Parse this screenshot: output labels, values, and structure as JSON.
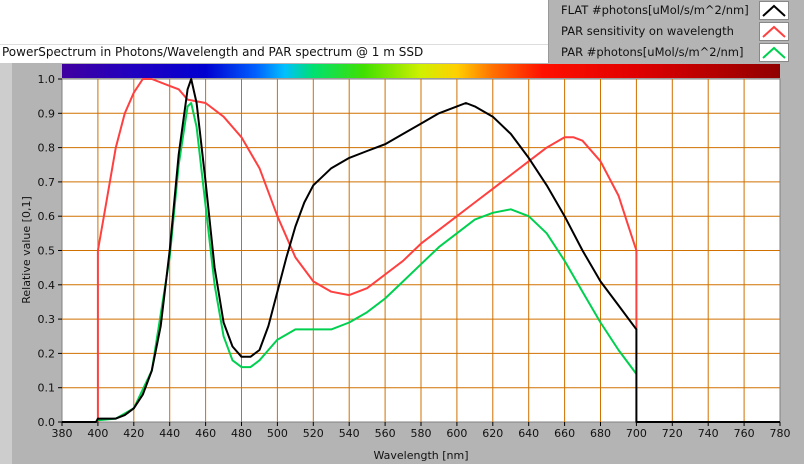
{
  "title": "PowerSpectrum in Photons/Wavelength and PAR spectrum @ 1 m SSD",
  "legend": [
    {
      "label": "FLAT #photons[uMol/s/m^2/nm]",
      "color": "#000000"
    },
    {
      "label": "PAR sensitivity on wavelength",
      "color": "#ff4040"
    },
    {
      "label": "PAR #photons[uMol/s/m^2/nm]",
      "color": "#00d050"
    }
  ],
  "chart_data": {
    "type": "line",
    "title": "PowerSpectrum in Photons/Wavelength and PAR spectrum @ 1 m SSD",
    "xlabel": "Wavelength [nm]",
    "ylabel": "Relative value [0,1]",
    "xlim": [
      380,
      780
    ],
    "ylim": [
      0,
      1
    ],
    "xticks": [
      "380",
      "400",
      "420",
      "440",
      "460",
      "480",
      "500",
      "520",
      "540",
      "560",
      "580",
      "600",
      "620",
      "640",
      "660",
      "680",
      "700",
      "720",
      "740",
      "760",
      "780"
    ],
    "yticks": [
      "0.0",
      "0.1",
      "0.2",
      "0.3",
      "0.4",
      "0.5",
      "0.6",
      "0.7",
      "0.8",
      "0.9",
      "1.0"
    ],
    "grid": true,
    "grid_color": "#d07000",
    "legend_position": "top-right",
    "spectrum_bar": true,
    "series": [
      {
        "name": "FLAT #photons[uMol/s/m^2/nm]",
        "color": "#000000",
        "x": [
          380,
          399,
          400,
          410,
          415,
          420,
          425,
          430,
          435,
          440,
          445,
          450,
          452,
          455,
          460,
          465,
          470,
          475,
          480,
          485,
          490,
          495,
          500,
          505,
          510,
          515,
          520,
          530,
          540,
          550,
          560,
          570,
          580,
          590,
          600,
          605,
          610,
          620,
          630,
          640,
          650,
          660,
          670,
          680,
          690,
          700,
          700,
          780
        ],
        "y": [
          0,
          0,
          0.01,
          0.01,
          0.02,
          0.04,
          0.08,
          0.15,
          0.28,
          0.5,
          0.78,
          0.97,
          1.0,
          0.93,
          0.7,
          0.45,
          0.29,
          0.22,
          0.19,
          0.19,
          0.21,
          0.28,
          0.38,
          0.48,
          0.57,
          0.64,
          0.69,
          0.74,
          0.77,
          0.79,
          0.81,
          0.84,
          0.87,
          0.9,
          0.92,
          0.93,
          0.92,
          0.89,
          0.84,
          0.77,
          0.69,
          0.6,
          0.5,
          0.41,
          0.34,
          0.27,
          0,
          0
        ]
      },
      {
        "name": "PAR sensitivity on wavelength",
        "color": "#ff4040",
        "x": [
          400,
          400,
          405,
          410,
          415,
          420,
          425,
          430,
          440,
          445,
          450,
          460,
          470,
          480,
          490,
          500,
          510,
          520,
          530,
          540,
          550,
          560,
          570,
          580,
          590,
          600,
          610,
          620,
          630,
          640,
          650,
          660,
          665,
          670,
          680,
          690,
          695,
          700,
          700
        ],
        "y": [
          0,
          0.5,
          0.65,
          0.8,
          0.9,
          0.96,
          1.0,
          1.0,
          0.98,
          0.97,
          0.94,
          0.93,
          0.89,
          0.83,
          0.74,
          0.6,
          0.48,
          0.41,
          0.38,
          0.37,
          0.39,
          0.43,
          0.47,
          0.52,
          0.56,
          0.6,
          0.64,
          0.68,
          0.72,
          0.76,
          0.8,
          0.83,
          0.83,
          0.82,
          0.76,
          0.66,
          0.58,
          0.5,
          0.27
        ]
      },
      {
        "name": "PAR #photons[uMol/s/m^2/nm]",
        "color": "#00d050",
        "x": [
          400,
          410,
          420,
          430,
          440,
          445,
          450,
          452,
          455,
          460,
          465,
          470,
          475,
          480,
          485,
          490,
          495,
          500,
          510,
          520,
          530,
          540,
          550,
          560,
          570,
          580,
          590,
          600,
          610,
          620,
          630,
          640,
          650,
          660,
          670,
          680,
          690,
          700
        ],
        "y": [
          0.005,
          0.01,
          0.04,
          0.15,
          0.48,
          0.75,
          0.92,
          0.93,
          0.86,
          0.63,
          0.4,
          0.25,
          0.18,
          0.16,
          0.16,
          0.18,
          0.21,
          0.24,
          0.27,
          0.27,
          0.27,
          0.29,
          0.32,
          0.36,
          0.41,
          0.46,
          0.51,
          0.55,
          0.59,
          0.61,
          0.62,
          0.6,
          0.55,
          0.47,
          0.38,
          0.29,
          0.21,
          0.14
        ]
      }
    ]
  }
}
